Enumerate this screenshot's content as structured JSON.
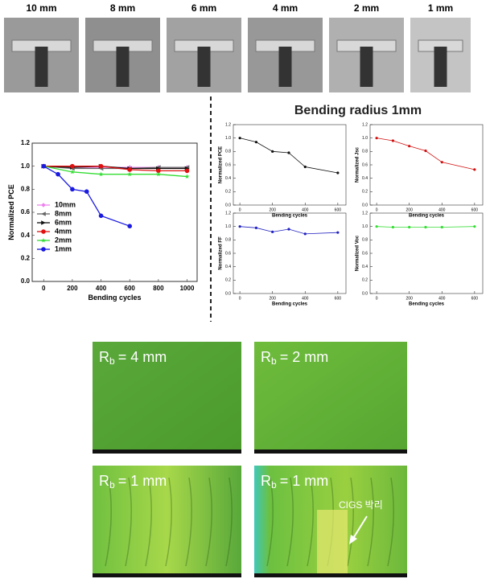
{
  "photos": {
    "labels": [
      "10 mm",
      "8 mm",
      "6 mm",
      "4 mm",
      "2 mm",
      "1 mm"
    ]
  },
  "figure_title": "Bending radius 1mm",
  "chart_data": [
    {
      "type": "line",
      "xlabel": "Bending cycles",
      "ylabel": "Normalized PCE",
      "xlim": [
        -80,
        1070
      ],
      "xticks": [
        0,
        200,
        400,
        600,
        800,
        1000
      ],
      "ylim": [
        0,
        1.2
      ],
      "yticks": [
        {
          "value": 0,
          "label": "0.0"
        },
        0.2,
        0.4,
        0.6,
        0.8,
        {
          "value": 1,
          "label": "1.0"
        },
        1.2
      ],
      "legend": "left",
      "series": [
        {
          "name": "10mm",
          "color": "#ee82ee",
          "marker": "diamond",
          "x": [
            0,
            200,
            400,
            600,
            800,
            1000
          ],
          "values": [
            1.0,
            0.99,
            0.99,
            0.99,
            0.99,
            0.99
          ]
        },
        {
          "name": "8mm",
          "color": "#666666",
          "marker": "left",
          "x": [
            0,
            200,
            400,
            600,
            800,
            1000
          ],
          "values": [
            1.0,
            0.98,
            0.98,
            0.98,
            0.99,
            0.99
          ]
        },
        {
          "name": "6mm",
          "color": "#111111",
          "marker": "right",
          "x": [
            0,
            200,
            400,
            600,
            800,
            1000
          ],
          "values": [
            1.0,
            0.99,
            1.0,
            0.98,
            0.98,
            0.98
          ]
        },
        {
          "name": "4mm",
          "color": "#e01010",
          "marker": "circle",
          "x": [
            0,
            200,
            400,
            600,
            800,
            1000
          ],
          "values": [
            1.0,
            1.0,
            1.0,
            0.97,
            0.96,
            0.96
          ]
        },
        {
          "name": "2mm",
          "color": "#33dd33",
          "marker": "star",
          "x": [
            0,
            200,
            400,
            600,
            800,
            1000
          ],
          "values": [
            1.0,
            0.95,
            0.93,
            0.93,
            0.93,
            0.91
          ]
        },
        {
          "name": "1mm",
          "color": "#1a1ae0",
          "marker": "circle",
          "x": [
            0,
            100,
            200,
            300,
            400,
            600
          ],
          "values": [
            1.0,
            0.93,
            0.8,
            0.78,
            0.57,
            0.48
          ]
        }
      ]
    },
    {
      "type": "line",
      "xlabel": "Bending cycles",
      "ylabel": "Normalized PCE",
      "xlim": [
        -40,
        650
      ],
      "xticks": [
        0,
        200,
        400,
        600
      ],
      "ylim": [
        0,
        1.2
      ],
      "yticks": [
        {
          "value": 0,
          "label": "0.0"
        },
        0.2,
        0.4,
        0.6,
        0.8,
        {
          "value": 1,
          "label": "1.0"
        },
        1.2
      ],
      "series": [
        {
          "color": "#111111",
          "marker": "circle",
          "x": [
            0,
            100,
            200,
            300,
            400,
            600
          ],
          "values": [
            1.0,
            0.94,
            0.8,
            0.78,
            0.57,
            0.48
          ]
        }
      ]
    },
    {
      "type": "line",
      "xlabel": "Bending cycles",
      "ylabel": "Normalized Jsc",
      "xlim": [
        -40,
        650
      ],
      "xticks": [
        0,
        200,
        400,
        600
      ],
      "ylim": [
        0,
        1.2
      ],
      "yticks": [
        {
          "value": 0,
          "label": "0.0"
        },
        0.2,
        0.4,
        0.6,
        0.8,
        {
          "value": 1,
          "label": "1.0"
        },
        1.2
      ],
      "series": [
        {
          "color": "#d01010",
          "marker": "circle",
          "x": [
            0,
            100,
            200,
            300,
            400,
            600
          ],
          "values": [
            1.0,
            0.96,
            0.88,
            0.81,
            0.64,
            0.53
          ]
        }
      ]
    },
    {
      "type": "line",
      "xlabel": "Bending cycles",
      "ylabel": "Normalized FF",
      "xlim": [
        -40,
        650
      ],
      "xticks": [
        0,
        200,
        400,
        600
      ],
      "ylim": [
        0,
        1.2
      ],
      "yticks": [
        {
          "value": 0,
          "label": "0.0"
        },
        0.2,
        0.4,
        0.6,
        0.8,
        {
          "value": 1,
          "label": "1.0"
        },
        1.2
      ],
      "series": [
        {
          "color": "#2020c0",
          "marker": "circle",
          "x": [
            0,
            100,
            200,
            300,
            400,
            600
          ],
          "values": [
            1.0,
            0.98,
            0.92,
            0.96,
            0.89,
            0.91
          ]
        }
      ]
    },
    {
      "type": "line",
      "xlabel": "Bending cycles",
      "ylabel": "Normalized Voc",
      "xlim": [
        -40,
        650
      ],
      "xticks": [
        0,
        200,
        400,
        600
      ],
      "ylim": [
        0,
        1.2
      ],
      "yticks": [
        {
          "value": 0,
          "label": "0.0"
        },
        0.2,
        0.4,
        0.6,
        0.8,
        {
          "value": 1,
          "label": "1.0"
        },
        1.2
      ],
      "series": [
        {
          "color": "#33dd33",
          "marker": "circle",
          "x": [
            0,
            100,
            200,
            300,
            400,
            600
          ],
          "values": [
            1.0,
            0.99,
            0.99,
            0.99,
            0.99,
            1.0
          ]
        }
      ]
    }
  ],
  "micrographs": [
    {
      "symbol": "R",
      "subscript": "b",
      "text": "= 4 mm"
    },
    {
      "symbol": "R",
      "subscript": "b",
      "text": "= 2 mm"
    },
    {
      "symbol": "R",
      "subscript": "b",
      "text": "= 1 mm"
    },
    {
      "symbol": "R",
      "subscript": "b",
      "text": "= 1 mm",
      "annotation": "CIGS 박리"
    }
  ]
}
